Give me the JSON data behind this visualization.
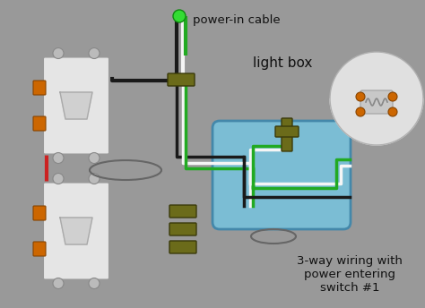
{
  "bg_color": "#999999",
  "title": "3-way wiring with\npower entering\nswitch #1",
  "label_power_in": "power-in cable",
  "label_light_box": "light box",
  "fig_width": 4.74,
  "fig_height": 3.44,
  "dpi": 100,
  "wire_black": "#1a1a1a",
  "wire_white": "#f5f5f5",
  "wire_red": "#cc2222",
  "wire_green": "#22aa22",
  "wire_dark_olive": "#6b6b1a",
  "orange_terminal": "#cc6600",
  "switch_body": "#e8e8e8",
  "lightbox_color": "#7bbdd4",
  "bulb_glass": "#e0e0e0",
  "bulb_green": "#66bb33"
}
